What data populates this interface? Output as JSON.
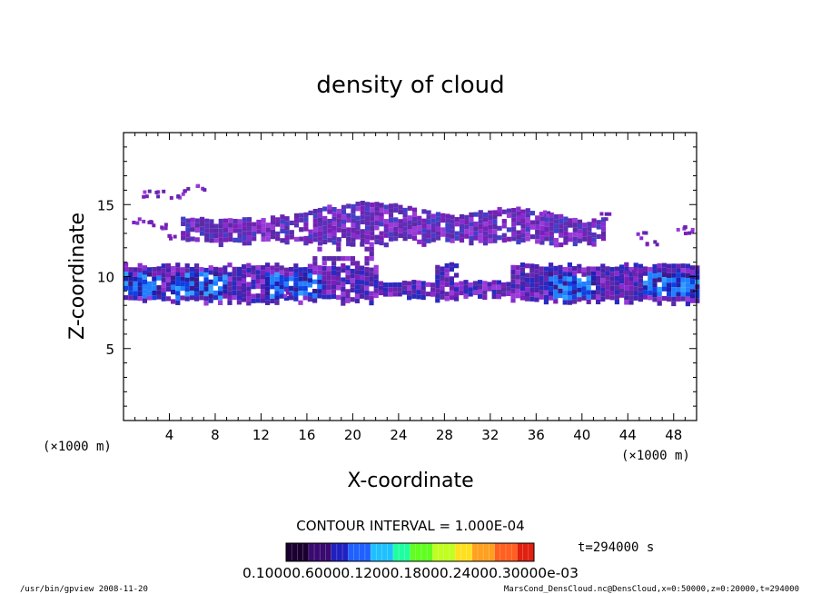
{
  "chart_data": {
    "type": "heatmap",
    "title": "density of cloud",
    "xlabel": "X-coordinate",
    "ylabel": "Z-coordinate",
    "x_unit_left": "(×1000 m)",
    "x_unit_right": "(×1000 m)",
    "xlim": [
      0,
      50
    ],
    "ylim": [
      0,
      20
    ],
    "x_ticks": [
      "4",
      "8",
      "12",
      "16",
      "20",
      "24",
      "28",
      "32",
      "36",
      "40",
      "44",
      "48"
    ],
    "y_ticks": [
      "5",
      "10",
      "15"
    ],
    "contour_interval": "CONTOUR INTERVAL = 1.000E-04",
    "time_label": "t=294000 s",
    "colorbar_labels": "0.10000.60000.12000.18000.24000.30000e-03",
    "colorbar_colors": [
      "#1a0030",
      "#3a0a70",
      "#2020c0",
      "#2060ff",
      "#20c0ff",
      "#20ffa0",
      "#60ff20",
      "#c0ff20",
      "#ffe020",
      "#ffa020",
      "#ff6020",
      "#e02010"
    ],
    "bands": [
      {
        "name": "lower cloud layer",
        "x_range": [
          0,
          50
        ],
        "z_range": [
          8.2,
          11.0
        ],
        "peak_density": 0.0006
      },
      {
        "name": "upper cloud layer",
        "x_range": [
          5,
          40
        ],
        "z_range": [
          12.2,
          15.2
        ],
        "peak_density": 0.0002
      }
    ]
  },
  "footer": {
    "left": "/usr/bin/gpview  2008-11-20",
    "right": "MarsCond_DensCloud.nc@DensCloud,x=0:50000,z=0:20000,t=294000"
  }
}
